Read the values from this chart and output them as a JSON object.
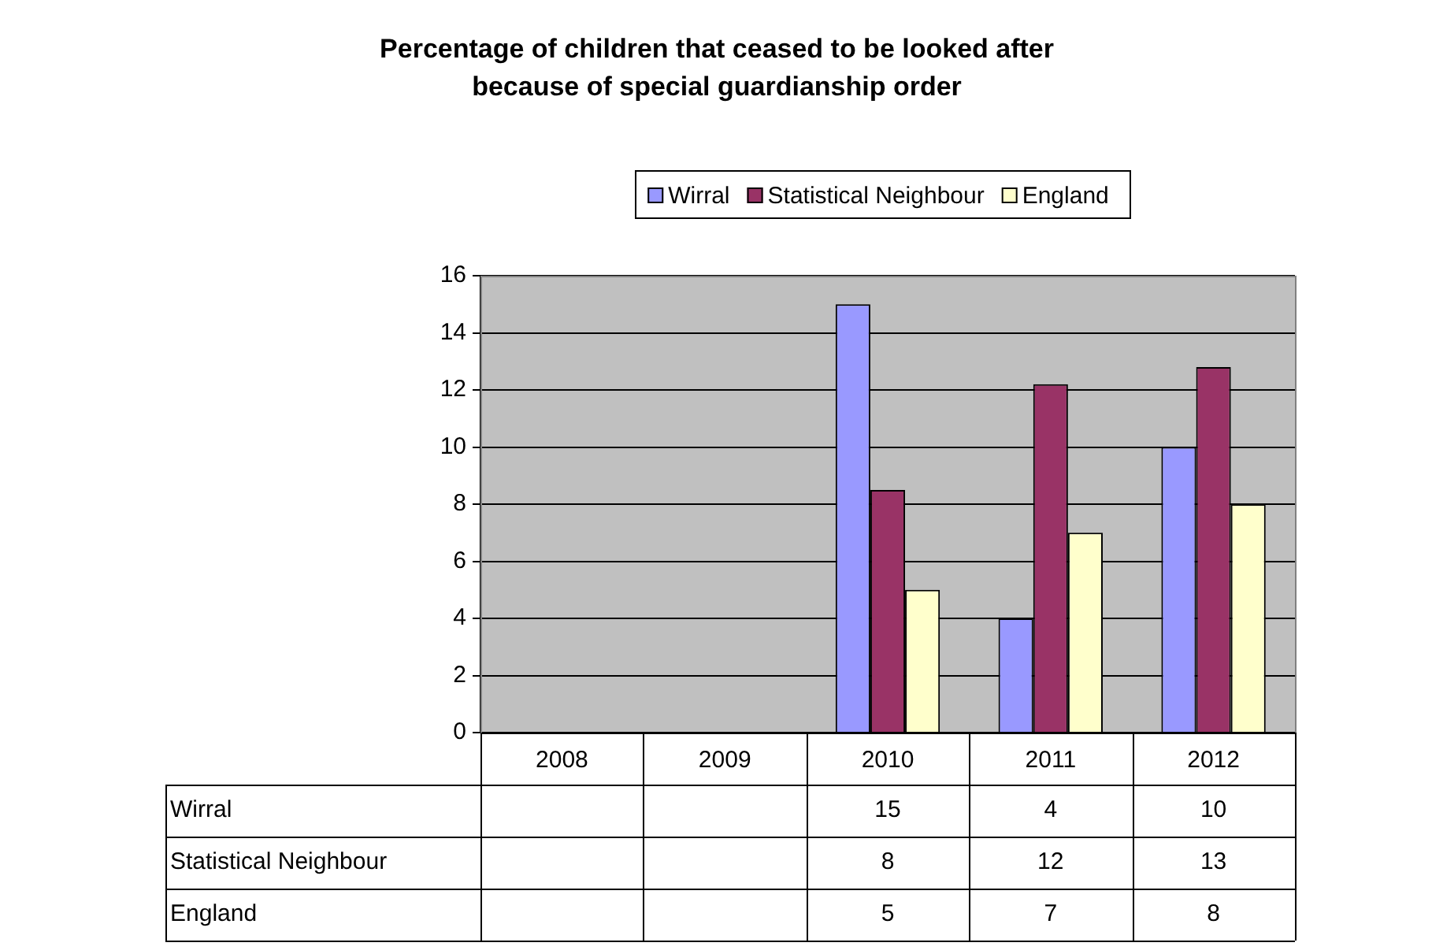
{
  "chart_data": {
    "type": "bar",
    "title": "Percentage of children that ceased to be looked after\nbecause of special guardianship order",
    "categories": [
      "2008",
      "2009",
      "2010",
      "2011",
      "2012"
    ],
    "series": [
      {
        "name": "Wirral",
        "color": "#9999ff",
        "values": [
          null,
          null,
          15,
          4,
          10
        ],
        "value_labels": [
          null,
          null,
          "15",
          "4",
          "10"
        ]
      },
      {
        "name": "Statistical Neighbour",
        "color": "#993366",
        "values": [
          null,
          null,
          8.5,
          12.2,
          12.8
        ],
        "value_labels": [
          null,
          null,
          "8",
          "12",
          "13"
        ]
      },
      {
        "name": "England",
        "color": "#ffffcc",
        "values": [
          null,
          null,
          5,
          7,
          8
        ],
        "value_labels": [
          null,
          null,
          "5",
          "7",
          "8"
        ]
      }
    ],
    "ylim": [
      0,
      16
    ],
    "yticks": [
      0,
      2,
      4,
      6,
      8,
      10,
      12,
      14,
      16
    ],
    "grid": "y",
    "legend": "top"
  }
}
